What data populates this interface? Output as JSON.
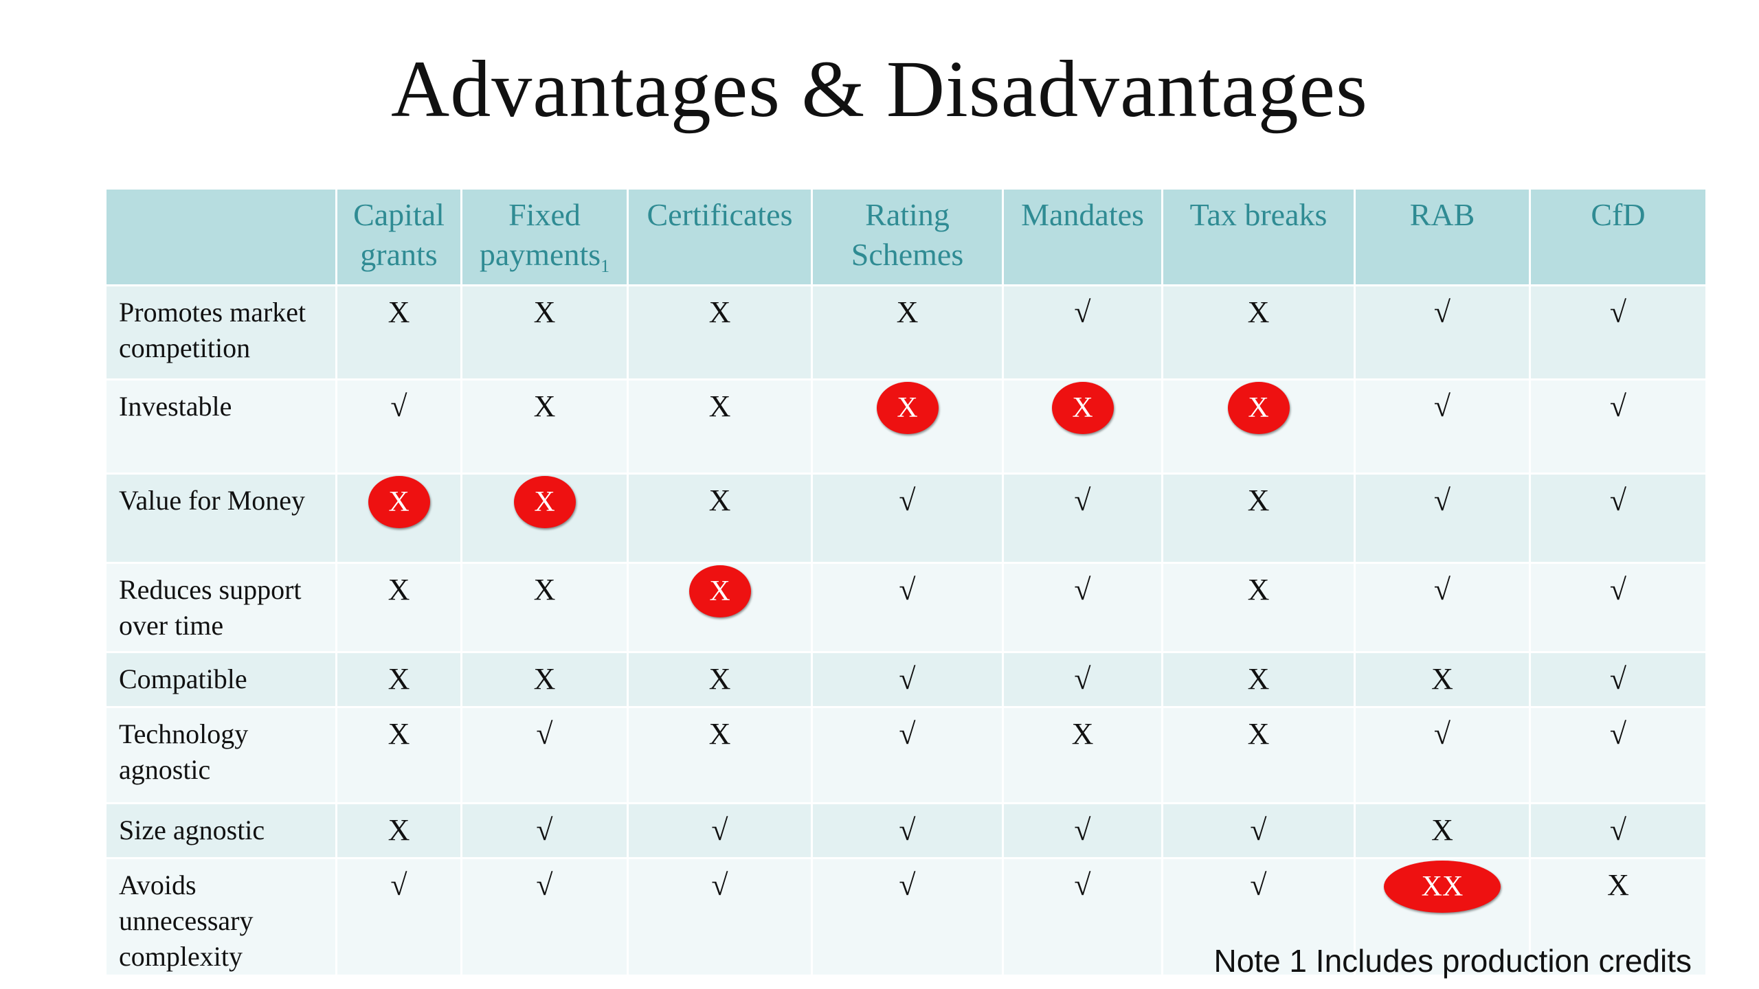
{
  "title": "Advantages & Disadvantages",
  "columns": [
    {
      "line1": "Capital",
      "line2": "grants",
      "sub": ""
    },
    {
      "line1": "Fixed",
      "line2": "payments",
      "sub": "1"
    },
    {
      "line1": "Certificates",
      "line2": "",
      "sub": ""
    },
    {
      "line1": "Rating",
      "line2": "Schemes",
      "sub": ""
    },
    {
      "line1": "Mandates",
      "line2": "",
      "sub": ""
    },
    {
      "line1": "Tax breaks",
      "line2": "",
      "sub": ""
    },
    {
      "line1": "RAB",
      "line2": "",
      "sub": ""
    },
    {
      "line1": "CfD",
      "line2": "",
      "sub": ""
    }
  ],
  "rows": [
    {
      "label": "Promotes market competition",
      "cells": [
        {
          "mark": "X",
          "highlight": false
        },
        {
          "mark": "X",
          "highlight": false
        },
        {
          "mark": "X",
          "highlight": false
        },
        {
          "mark": "X",
          "highlight": false
        },
        {
          "mark": "√",
          "highlight": false
        },
        {
          "mark": "X",
          "highlight": false
        },
        {
          "mark": "√",
          "highlight": false
        },
        {
          "mark": "√",
          "highlight": false
        }
      ]
    },
    {
      "label": "Investable",
      "cells": [
        {
          "mark": "√",
          "highlight": false
        },
        {
          "mark": "X",
          "highlight": false
        },
        {
          "mark": "X",
          "highlight": false
        },
        {
          "mark": "X",
          "highlight": true
        },
        {
          "mark": "X",
          "highlight": true
        },
        {
          "mark": "X",
          "highlight": true
        },
        {
          "mark": "√",
          "highlight": false
        },
        {
          "mark": "√",
          "highlight": false
        }
      ]
    },
    {
      "label": "Value for Money",
      "cells": [
        {
          "mark": "X",
          "highlight": true
        },
        {
          "mark": "X",
          "highlight": true
        },
        {
          "mark": "X",
          "highlight": false
        },
        {
          "mark": "√",
          "highlight": false
        },
        {
          "mark": "√",
          "highlight": false
        },
        {
          "mark": "X",
          "highlight": false
        },
        {
          "mark": "√",
          "highlight": false
        },
        {
          "mark": "√",
          "highlight": false
        }
      ]
    },
    {
      "label": "Reduces support over time",
      "cells": [
        {
          "mark": "X",
          "highlight": false
        },
        {
          "mark": "X",
          "highlight": false
        },
        {
          "mark": "X",
          "highlight": true
        },
        {
          "mark": "√",
          "highlight": false
        },
        {
          "mark": "√",
          "highlight": false
        },
        {
          "mark": "X",
          "highlight": false
        },
        {
          "mark": "√",
          "highlight": false
        },
        {
          "mark": "√",
          "highlight": false
        }
      ]
    },
    {
      "label": "Compatible",
      "cells": [
        {
          "mark": "X",
          "highlight": false
        },
        {
          "mark": "X",
          "highlight": false
        },
        {
          "mark": "X",
          "highlight": false
        },
        {
          "mark": "√",
          "highlight": false
        },
        {
          "mark": "√",
          "highlight": false
        },
        {
          "mark": "X",
          "highlight": false
        },
        {
          "mark": "X",
          "highlight": false
        },
        {
          "mark": "√",
          "highlight": false
        }
      ]
    },
    {
      "label": "Technology agnostic",
      "cells": [
        {
          "mark": "X",
          "highlight": false
        },
        {
          "mark": "√",
          "highlight": false
        },
        {
          "mark": "X",
          "highlight": false
        },
        {
          "mark": "√",
          "highlight": false
        },
        {
          "mark": "X",
          "highlight": false
        },
        {
          "mark": "X",
          "highlight": false
        },
        {
          "mark": "√",
          "highlight": false
        },
        {
          "mark": "√",
          "highlight": false
        }
      ]
    },
    {
      "label": "Size agnostic",
      "cells": [
        {
          "mark": "X",
          "highlight": false
        },
        {
          "mark": "√",
          "highlight": false
        },
        {
          "mark": "√",
          "highlight": false
        },
        {
          "mark": "√",
          "highlight": false
        },
        {
          "mark": "√",
          "highlight": false
        },
        {
          "mark": "√",
          "highlight": false
        },
        {
          "mark": "X",
          "highlight": false
        },
        {
          "mark": "√",
          "highlight": false
        }
      ]
    },
    {
      "label": "Avoids unnecessary complexity",
      "cells": [
        {
          "mark": "√",
          "highlight": false
        },
        {
          "mark": "√",
          "highlight": false
        },
        {
          "mark": "√",
          "highlight": false
        },
        {
          "mark": "√",
          "highlight": false
        },
        {
          "mark": "√",
          "highlight": false
        },
        {
          "mark": "√",
          "highlight": false
        },
        {
          "mark": "XX",
          "highlight": true
        },
        {
          "mark": "X",
          "highlight": false
        }
      ]
    }
  ],
  "note": "Note 1 Includes production credits",
  "colors": {
    "header_bg": "#b7dde0",
    "header_text": "#2f8b93",
    "row_bg_a": "#e3f1f2",
    "row_bg_b": "#f1f8f9",
    "highlight": "#ee1111"
  }
}
